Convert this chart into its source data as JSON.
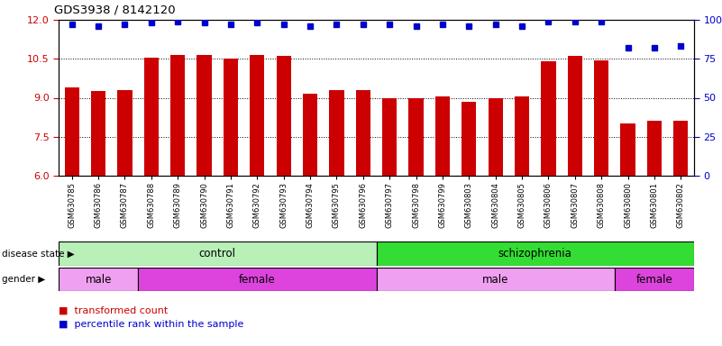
{
  "title": "GDS3938 / 8142120",
  "samples": [
    "GSM630785",
    "GSM630786",
    "GSM630787",
    "GSM630788",
    "GSM630789",
    "GSM630790",
    "GSM630791",
    "GSM630792",
    "GSM630793",
    "GSM630794",
    "GSM630795",
    "GSM630796",
    "GSM630797",
    "GSM630798",
    "GSM630799",
    "GSM630803",
    "GSM630804",
    "GSM630805",
    "GSM630806",
    "GSM630807",
    "GSM630808",
    "GSM630800",
    "GSM630801",
    "GSM630802"
  ],
  "bar_values": [
    9.4,
    9.25,
    9.3,
    10.55,
    10.65,
    10.65,
    10.5,
    10.65,
    10.6,
    9.15,
    9.3,
    9.3,
    9.0,
    9.0,
    9.05,
    8.85,
    9.0,
    9.05,
    10.4,
    10.6,
    10.45,
    8.0,
    8.1,
    8.1
  ],
  "percentile_values": [
    97,
    96,
    97,
    98,
    99,
    98,
    97,
    98,
    97,
    96,
    97,
    97,
    97,
    96,
    97,
    96,
    97,
    96,
    99,
    99,
    99,
    82,
    82,
    83
  ],
  "bar_color": "#cc0000",
  "dot_color": "#0000cc",
  "ylim_left": [
    6,
    12
  ],
  "ylim_right": [
    0,
    100
  ],
  "yticks_left": [
    6,
    7.5,
    9,
    10.5,
    12
  ],
  "yticks_right": [
    0,
    25,
    50,
    75,
    100
  ],
  "disease_state": [
    {
      "label": "control",
      "start": 0,
      "end": 12,
      "color": "#b8f0b8"
    },
    {
      "label": "schizophrenia",
      "start": 12,
      "end": 24,
      "color": "#33dd33"
    }
  ],
  "gender": [
    {
      "label": "male",
      "start": 0,
      "end": 3,
      "color": "#f0a0f0"
    },
    {
      "label": "female",
      "start": 3,
      "end": 12,
      "color": "#dd44dd"
    },
    {
      "label": "male",
      "start": 12,
      "end": 21,
      "color": "#f0a0f0"
    },
    {
      "label": "female",
      "start": 21,
      "end": 24,
      "color": "#dd44dd"
    }
  ]
}
